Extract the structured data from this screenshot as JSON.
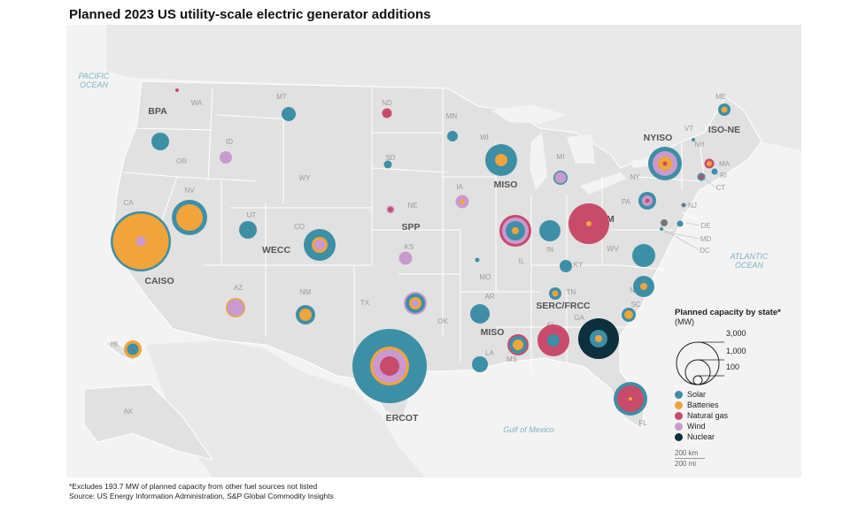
{
  "title": "Planned 2023 US utility-scale electric generator additions",
  "footnote": "*Excludes 193.7 MW of planned capacity from other fuel sources not listed",
  "source": "Source: US Energy Information Administration, S&P Global Commodity Insights",
  "water_labels": {
    "pacific": [
      "PACIFIC",
      "OCEAN"
    ],
    "atlantic": [
      "ATLANTIC",
      "OCEAN"
    ],
    "gulf": "Gulf of Mexico"
  },
  "region_labels": [
    "BPA",
    "CAISO",
    "WECC",
    "SPP",
    "MISO",
    "MISO",
    "ERCOT",
    "SERC/FRCC",
    "PJM",
    "NYISO",
    "ISO-NE"
  ],
  "state_labels": [
    "WA",
    "OR",
    "CA",
    "NV",
    "ID",
    "MT",
    "WY",
    "UT",
    "AZ",
    "CO",
    "NM",
    "ND",
    "SD",
    "NE",
    "KS",
    "OK",
    "TX",
    "MN",
    "IA",
    "MO",
    "AR",
    "LA",
    "WI",
    "IL",
    "MI",
    "IN",
    "OH",
    "KY",
    "TN",
    "MS",
    "AL",
    "GA",
    "FL",
    "SC",
    "NC",
    "VA",
    "WV",
    "PA",
    "NY",
    "VT",
    "NH",
    "ME",
    "MA",
    "RI",
    "CT",
    "NJ",
    "DE",
    "MD",
    "DC",
    "HI",
    "AK"
  ],
  "legend": {
    "title": "Planned capacity by state*",
    "unit": "(MW)",
    "sizes": [
      "3,000",
      "1,000",
      "100"
    ],
    "fuels": [
      {
        "name": "Solar",
        "color": "#3d8fa6"
      },
      {
        "name": "Batteries",
        "color": "#f0a43a"
      },
      {
        "name": "Natural gas",
        "color": "#c84b6b"
      },
      {
        "name": "Wind",
        "color": "#c99ad0"
      },
      {
        "name": "Nuclear",
        "color": "#0e2f3d"
      }
    ]
  },
  "scale": {
    "km": "200 km",
    "mi": "200 mi"
  },
  "colors": {
    "land": "#e1e1e1",
    "water": "#f3f3f3",
    "border": "#ffffff",
    "water_label": "#7fb3c4"
  }
}
